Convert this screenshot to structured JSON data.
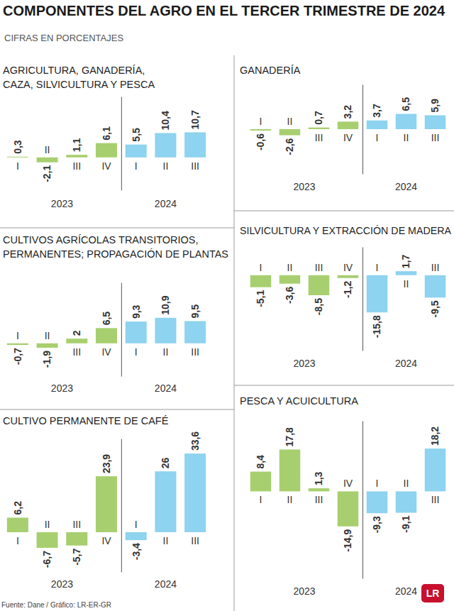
{
  "title": "COMPONENTES DEL AGRO EN EL TERCER TRIMESTRE DE 2024",
  "subtitle": "CIFRAS EN PORCENTAJES",
  "source": "Fuente: Dane / Gráfico: LR-ER-GR",
  "logo": "LR",
  "chart_data": [
    {
      "type": "bar",
      "title": [
        "AGRICULTURA, GANADERÍA,",
        "CAZA, SILVICULTURA Y PESCA"
      ],
      "categories": [
        "I",
        "II",
        "III",
        "IV",
        "I",
        "II",
        "III"
      ],
      "series": [
        {
          "name": "2023",
          "color": "#a8cf6f",
          "values": [
            0.3,
            -2.1,
            1.1,
            6.1,
            null,
            null,
            null
          ],
          "value_labels": [
            "0,3",
            "-2,1",
            "1,1",
            "6,1",
            null,
            null,
            null
          ]
        },
        {
          "name": "2024",
          "color": "#8ed3ef",
          "values": [
            null,
            null,
            null,
            null,
            5.5,
            10.4,
            10.7
          ],
          "value_labels": [
            null,
            null,
            null,
            null,
            "5,5",
            "10,4",
            "10,7"
          ]
        }
      ],
      "ylim": [
        -14,
        26
      ],
      "data_labels": true,
      "tick_labels": "x"
    },
    {
      "type": "bar",
      "title": [
        "GANADERÍA"
      ],
      "categories": [
        "I",
        "II",
        "III",
        "IV",
        "I",
        "II",
        "III"
      ],
      "series": [
        {
          "name": "2023",
          "color": "#a8cf6f",
          "values": [
            -0.6,
            -2.6,
            0.7,
            3.2,
            null,
            null,
            null
          ],
          "value_labels": [
            "-0,6",
            "-2,6",
            "0,7",
            "3,2",
            null,
            null,
            null
          ]
        },
        {
          "name": "2024",
          "color": "#8ed3ef",
          "values": [
            null,
            null,
            null,
            null,
            3.7,
            6.5,
            5.9
          ],
          "value_labels": [
            null,
            null,
            null,
            null,
            "3,7",
            "6,5",
            "5,9"
          ]
        }
      ],
      "ylim": [
        -19,
        19
      ],
      "data_labels": true,
      "tick_labels": "x"
    },
    {
      "type": "bar",
      "title": [
        "CULTIVOS AGRÍCOLAS TRANSITORIOS,",
        "PERMANENTES; PROPAGACIÓN DE PLANTAS"
      ],
      "categories": [
        "I",
        "II",
        "III",
        "IV",
        "I",
        "II",
        "III"
      ],
      "series": [
        {
          "name": "2023",
          "color": "#a8cf6f",
          "values": [
            -0.7,
            -1.9,
            2,
            6.5,
            null,
            null,
            null
          ],
          "value_labels": [
            "-0,7",
            "-1,9",
            "2",
            "6,5",
            null,
            null,
            null
          ]
        },
        {
          "name": "2024",
          "color": "#8ed3ef",
          "values": [
            null,
            null,
            null,
            null,
            9.3,
            10.9,
            9.5
          ],
          "value_labels": [
            null,
            null,
            null,
            null,
            "9,3",
            "10,9",
            "9,5"
          ]
        }
      ],
      "ylim": [
        -14,
        26
      ],
      "data_labels": true,
      "tick_labels": "x"
    },
    {
      "type": "bar",
      "title": [
        "SILVICULTURA Y EXTRACCIÓN DE MADERA"
      ],
      "categories": [
        "I",
        "II",
        "III",
        "IV",
        "I",
        "II",
        "III"
      ],
      "series": [
        {
          "name": "2023",
          "color": "#a8cf6f",
          "values": [
            -5.1,
            -3.6,
            -8.5,
            -1.2,
            null,
            null,
            null
          ],
          "value_labels": [
            "-5,1",
            "-3,6",
            "-8,5",
            "-1,2",
            null,
            null,
            null
          ]
        },
        {
          "name": "2024",
          "color": "#8ed3ef",
          "values": [
            null,
            null,
            null,
            null,
            -15.8,
            1.7,
            -9.5
          ],
          "value_labels": [
            null,
            null,
            null,
            null,
            "-15,8",
            "1,7",
            "-9,5"
          ]
        }
      ],
      "ylim": [
        -32,
        12
      ],
      "data_labels": true,
      "tick_labels": "x"
    },
    {
      "type": "bar",
      "title": [
        "CULTIVO PERMANENTE DE CAFÉ"
      ],
      "categories": [
        "I",
        "II",
        "III",
        "IV",
        "I",
        "II",
        "III"
      ],
      "series": [
        {
          "name": "2023",
          "color": "#a8cf6f",
          "values": [
            6.2,
            -6.7,
            -5.7,
            23.9,
            null,
            null,
            null
          ],
          "value_labels": [
            "6,2",
            "-6,7",
            "-5,7",
            "23,9",
            null,
            null,
            null
          ]
        },
        {
          "name": "2024",
          "color": "#8ed3ef",
          "values": [
            null,
            null,
            null,
            null,
            -3.4,
            26,
            33.6
          ],
          "value_labels": [
            null,
            null,
            null,
            null,
            "-3,4",
            "26",
            "33,6"
          ]
        }
      ],
      "ylim": [
        -17,
        40
      ],
      "data_labels": true,
      "tick_labels": "x"
    },
    {
      "type": "bar",
      "title": [
        "PESCA Y ACUICULTURA"
      ],
      "categories": [
        "I",
        "II",
        "III",
        "IV",
        "I",
        "II",
        "III"
      ],
      "series": [
        {
          "name": "2023",
          "color": "#a8cf6f",
          "values": [
            8.4,
            17.8,
            1.3,
            -14.9,
            null,
            null,
            null
          ],
          "value_labels": [
            "8,4",
            "17,8",
            "1,3",
            "-14,9",
            null,
            null,
            null
          ]
        },
        {
          "name": "2024",
          "color": "#8ed3ef",
          "values": [
            null,
            null,
            null,
            null,
            -9.3,
            -9.1,
            18.2
          ],
          "value_labels": [
            null,
            null,
            null,
            null,
            "-9,3",
            "-9,1",
            "18,2"
          ]
        }
      ],
      "ylim": [
        -37,
        30
      ],
      "data_labels": true,
      "tick_labels": "x"
    }
  ]
}
